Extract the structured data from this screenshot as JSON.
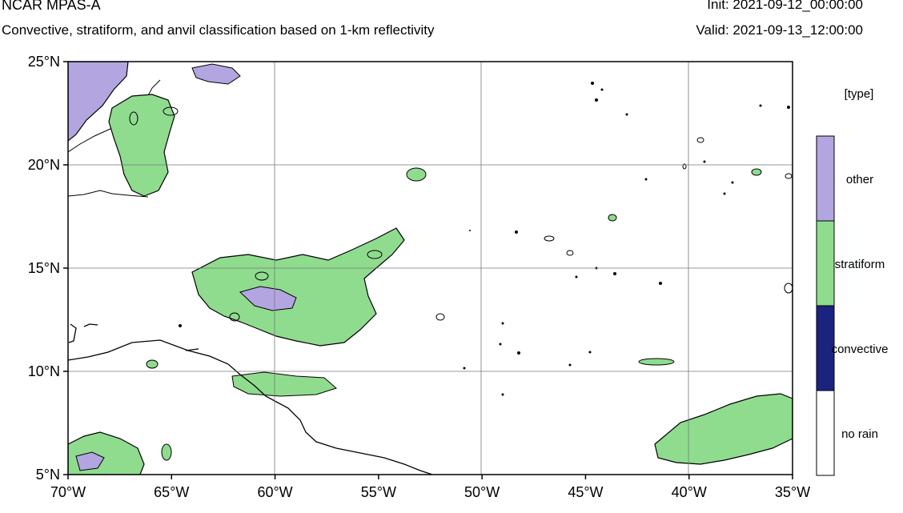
{
  "header": {
    "title": "NCAR MPAS-A",
    "subtitle": "Convective, stratiform, and anvil classification based on 1-km reflectivity",
    "init": "Init: 2021-09-12_00:00:00",
    "valid": "Valid: 2021-09-13_12:00:00"
  },
  "map": {
    "lon_range": [
      -70,
      -35
    ],
    "lat_range": [
      5,
      25
    ],
    "x_ticks": [
      {
        "lon": -70,
        "label": "70°W"
      },
      {
        "lon": -65,
        "label": "65°W"
      },
      {
        "lon": -60,
        "label": "60°W"
      },
      {
        "lon": -55,
        "label": "55°W"
      },
      {
        "lon": -50,
        "label": "50°W"
      },
      {
        "lon": -45,
        "label": "45°W"
      },
      {
        "lon": -40,
        "label": "40°W"
      },
      {
        "lon": -35,
        "label": "35°W"
      }
    ],
    "y_ticks": [
      {
        "lat": 25,
        "label": "25°N"
      },
      {
        "lat": 20,
        "label": "20°N"
      },
      {
        "lat": 15,
        "label": "15°N"
      },
      {
        "lat": 10,
        "label": "10°N"
      },
      {
        "lat": 5,
        "label": "5°N"
      }
    ],
    "gridlines": true
  },
  "legend": {
    "title": "[type]",
    "entries": [
      {
        "label": "other",
        "color": "#b3a6e0"
      },
      {
        "label": "stratiform",
        "color": "#8fdc8f"
      },
      {
        "label": "convective",
        "color": "#1a237e"
      },
      {
        "label": "no rain",
        "color": "#ffffff"
      }
    ]
  }
}
